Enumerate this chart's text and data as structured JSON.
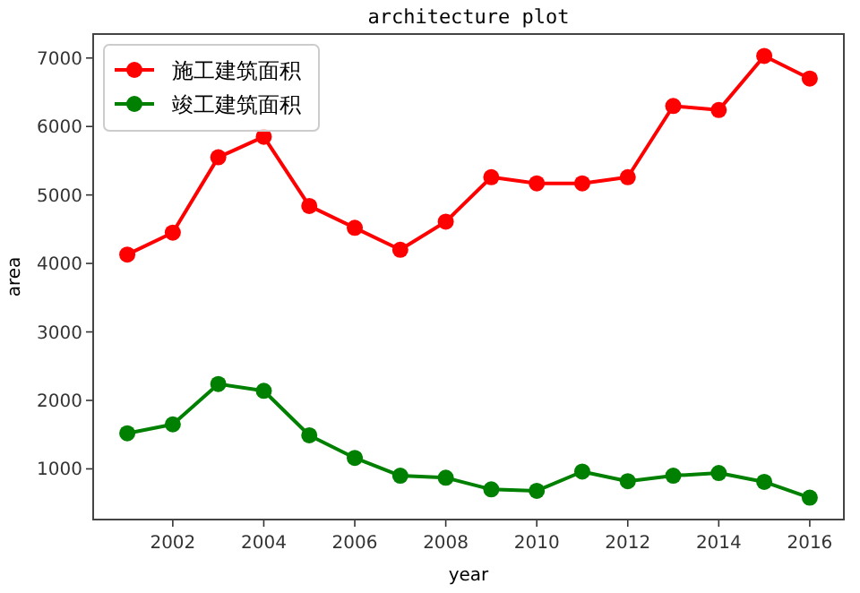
{
  "chart_data": {
    "type": "line",
    "title": "architecture plot",
    "xlabel": "year",
    "ylabel": "area",
    "x": [
      2001,
      2002,
      2003,
      2004,
      2005,
      2006,
      2007,
      2008,
      2009,
      2010,
      2011,
      2012,
      2013,
      2014,
      2015,
      2016
    ],
    "series": [
      {
        "name": "施工建筑面积",
        "color": "#ff0000",
        "values": [
          4130,
          4450,
          5550,
          5850,
          4840,
          4520,
          4200,
          4610,
          5260,
          5170,
          5170,
          5260,
          6300,
          6240,
          7030,
          6700
        ]
      },
      {
        "name": "竣工建筑面积",
        "color": "#008000",
        "values": [
          1520,
          1650,
          2240,
          2140,
          1490,
          1160,
          900,
          870,
          700,
          680,
          960,
          820,
          900,
          940,
          810,
          580
        ]
      }
    ],
    "xlim": [
      2000.25,
      2016.75
    ],
    "ylim": [
      260,
      7350
    ],
    "xticks": [
      2002,
      2004,
      2006,
      2008,
      2010,
      2012,
      2014,
      2016
    ],
    "yticks": [
      1000,
      2000,
      3000,
      4000,
      5000,
      6000,
      7000
    ],
    "grid": false,
    "legend": "top left",
    "marker": "circle",
    "line_style": "solid"
  }
}
